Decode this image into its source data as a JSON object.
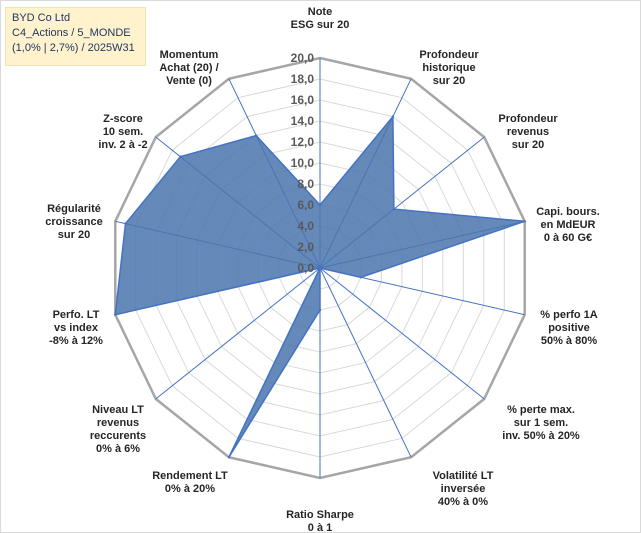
{
  "info_box": {
    "line1": "BYD Co Ltd",
    "line2": "C4_Actions / 5_MONDE",
    "line3": "(1,0% | 2,7%) / 2025W31"
  },
  "colors": {
    "fill": "#4a75ad",
    "series_line": "#4472c4",
    "spoke": "#4472c4",
    "ring": "#d9d9d9",
    "outer_ring": "#a6a6a6",
    "text": "#262626",
    "info_bg": "#fff2cc",
    "info_text": "#1f3864"
  },
  "chart_data": {
    "type": "radar",
    "scale": {
      "min": 0,
      "max": 20,
      "step": 2,
      "tick_labels": [
        "0,0",
        "2,0",
        "4,0",
        "6,0",
        "8,0",
        "10,0",
        "12,0",
        "14,0",
        "16,0",
        "18,0",
        "20,0"
      ]
    },
    "axes": [
      {
        "label": [
          "Note",
          "ESG sur 20"
        ],
        "value": 6
      },
      {
        "label": [
          "Profondeur",
          "historique",
          "sur 20"
        ],
        "value": 16
      },
      {
        "label": [
          "Profondeur",
          "revenus",
          "sur 20"
        ],
        "value": 9
      },
      {
        "label": [
          "Capi. bours.",
          "en MdEUR",
          "0 à 60 G€"
        ],
        "value": 20
      },
      {
        "label": [
          "% perfo 1A",
          "positive",
          "50% à 80%"
        ],
        "value": 4
      },
      {
        "label": [
          "% perte max.",
          "sur 1 sem.",
          "inv. 50% à 20%"
        ],
        "value": 0
      },
      {
        "label": [
          "Volatilité LT",
          "inversée",
          "40% à 0%"
        ],
        "value": 0
      },
      {
        "label": [
          "Ratio Sharpe",
          "0 à 1"
        ],
        "value": 4
      },
      {
        "label": [
          "Rendement LT",
          "0% à 20%"
        ],
        "value": 20
      },
      {
        "label": [
          "Niveau LT",
          "revenus",
          "reccurents",
          "0% à 6%"
        ],
        "value": 0
      },
      {
        "label": [
          "Perfo. LT",
          "vs index",
          "-8% à 12%"
        ],
        "value": 20
      },
      {
        "label": [
          "Régularité",
          "croissance",
          "sur 20"
        ],
        "value": 19
      },
      {
        "label": [
          "Z-score",
          "10 sem.",
          "inv. 2 à -2"
        ],
        "value": 17
      },
      {
        "label": [
          "Momentum",
          "Achat (20) /",
          "Vente (0)"
        ],
        "value": 14
      }
    ]
  }
}
